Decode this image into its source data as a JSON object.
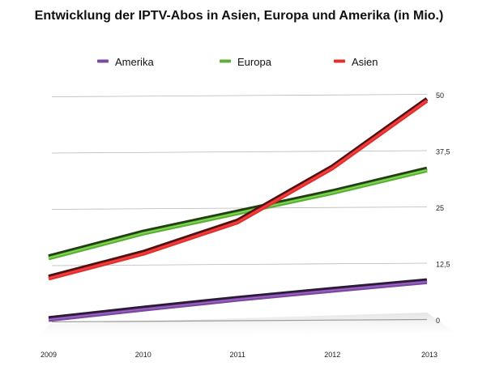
{
  "chart_data": {
    "type": "line",
    "title": "Entwicklung der IPTV-Abos in Asien, Europa und Amerika (in Mio.)",
    "xlabel": "",
    "ylabel": "",
    "x": [
      "2009",
      "2010",
      "2011",
      "2012",
      "2013"
    ],
    "ylim": [
      0,
      50
    ],
    "yticks": [
      0,
      12.5,
      25,
      37.5,
      50
    ],
    "ytick_labels": [
      "0",
      "12,5",
      "25",
      "37,5",
      "50"
    ],
    "y_axis_side": "right",
    "grid": true,
    "legend_position": "top",
    "series": [
      {
        "name": "Amerika",
        "color": "#7a4a9c",
        "values": [
          0.3,
          2.6,
          4.8,
          6.8,
          8.7
        ]
      },
      {
        "name": "Europa",
        "color": "#5fae3a",
        "values": [
          14,
          19.5,
          24,
          28.5,
          33.5
        ]
      },
      {
        "name": "Asien",
        "color": "#e03030",
        "values": [
          9.5,
          15,
          22,
          34,
          49
        ]
      }
    ]
  }
}
